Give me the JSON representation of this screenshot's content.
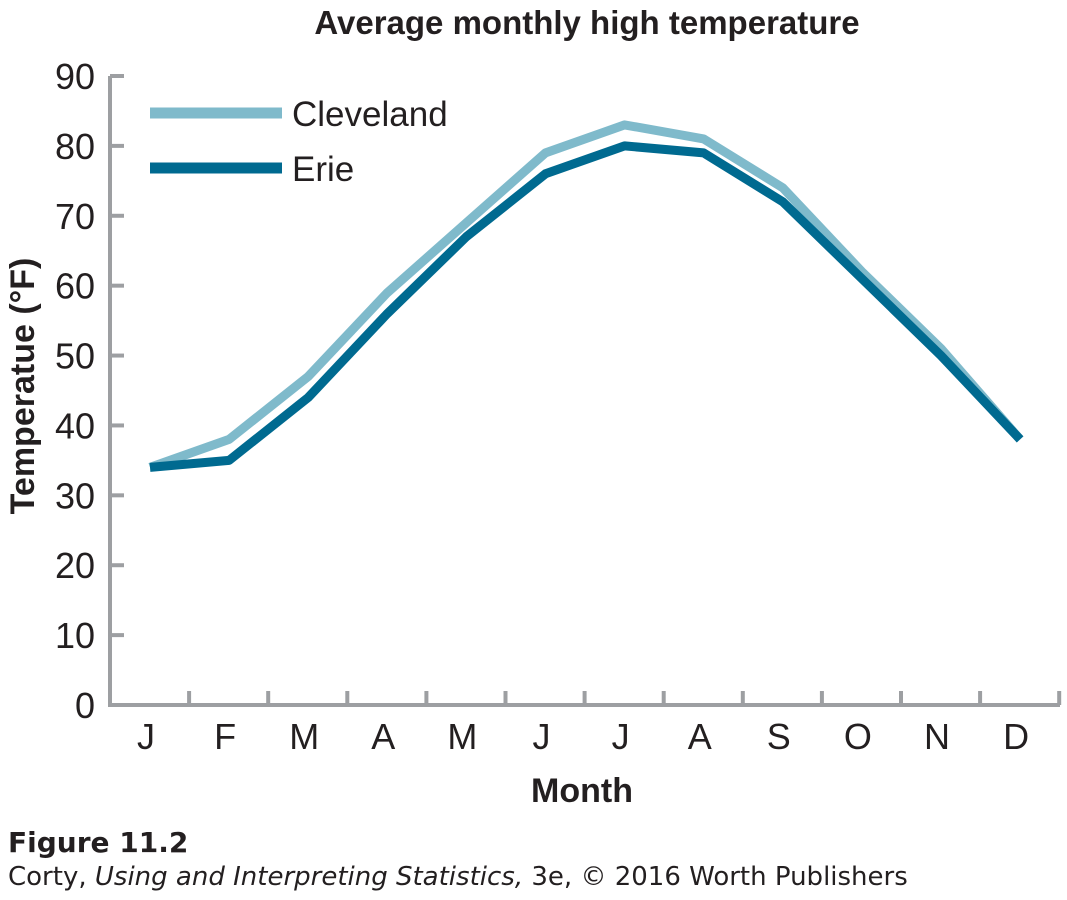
{
  "chart_data": {
    "type": "line",
    "title": "Average monthly high temperature",
    "xlabel": "Month",
    "ylabel": "Temperatue (°F)",
    "categories": [
      "J",
      "F",
      "M",
      "A",
      "M",
      "J",
      "J",
      "A",
      "S",
      "O",
      "N",
      "D"
    ],
    "ylim": [
      0,
      90
    ],
    "yticks": [
      "0",
      "10",
      "20",
      "30",
      "40",
      "50",
      "60",
      "70",
      "80",
      "90"
    ],
    "grid": false,
    "legend_position": "top-left",
    "series": [
      {
        "name": "Cleveland",
        "color": "#7fbacb",
        "values": [
          34,
          38,
          47,
          59,
          69,
          79,
          83,
          81,
          74,
          62,
          51,
          38
        ]
      },
      {
        "name": "Erie",
        "color": "#006a90",
        "values": [
          34,
          35,
          44,
          56,
          67,
          76,
          80,
          79,
          72,
          61,
          50,
          38
        ]
      }
    ]
  },
  "caption": {
    "figure_label": "Figure 11.2",
    "author": "Corty,",
    "book_title": "Using and Interpreting Statistics,",
    "edition_publisher": "3e, © 2016 Worth Publishers"
  }
}
